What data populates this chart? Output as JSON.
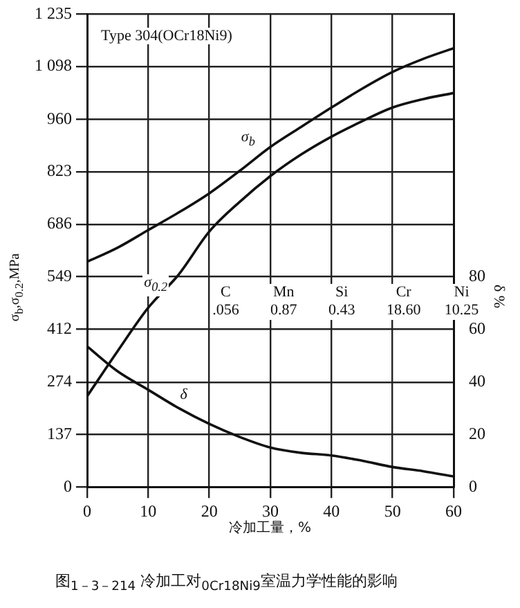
{
  "chart_data": {
    "type": "line",
    "title": "图$_{1－3－214}$ 冷加工对$_{0Cr18Ni9}$室温力学性能的影响",
    "xlabel": "冷加工量，%",
    "ylabel": "σ$_{b}$,σ$_{0.2}$,MPa",
    "y2label": "δ %",
    "x": [
      0,
      5,
      10,
      15,
      20,
      25,
      30,
      35,
      40,
      45,
      50,
      55,
      60
    ],
    "series": [
      {
        "name": "σ$_{b}$",
        "color": "#111111",
        "values": [
          588,
          625,
          671,
          717,
          767,
          826,
          888,
          940,
          991,
          1040,
          1084,
          1118,
          1146
        ]
      },
      {
        "name": "σ$_{0.2}$",
        "color": "#111111",
        "values": [
          237,
          355,
          468,
          555,
          667,
          745,
          812,
          868,
          915,
          955,
          991,
          1013,
          1029
        ]
      },
      {
        "name": "δ",
        "color": "#111111",
        "axis": "y2",
        "values": [
          53.5,
          44,
          37,
          30,
          24,
          19,
          15,
          13,
          12,
          10,
          7.6,
          6,
          4
        ]
      }
    ],
    "xlim": [
      0,
      60
    ],
    "xticks": [
      0,
      10,
      20,
      30,
      40,
      50,
      60
    ],
    "ylim": [
      0,
      1235
    ],
    "yticks": [
      0,
      137,
      274,
      412,
      549,
      686,
      823,
      960,
      {
        "value": 1098,
        "label": "1 098"
      },
      {
        "value": 1235,
        "label": "1 235"
      }
    ],
    "y2lim": [
      0,
      180
    ],
    "y2ticks": [
      0,
      20,
      40,
      60,
      80
    ],
    "grid": true,
    "legend": false,
    "marker": "none",
    "line_style": "solid",
    "annotations": [
      "Type 304(OCr18Ni9)",
      "C\n.056",
      "Mn\n0.87",
      "Si\n0.43",
      "Cr\n18.60",
      "Ni\n10.25"
    ]
  }
}
